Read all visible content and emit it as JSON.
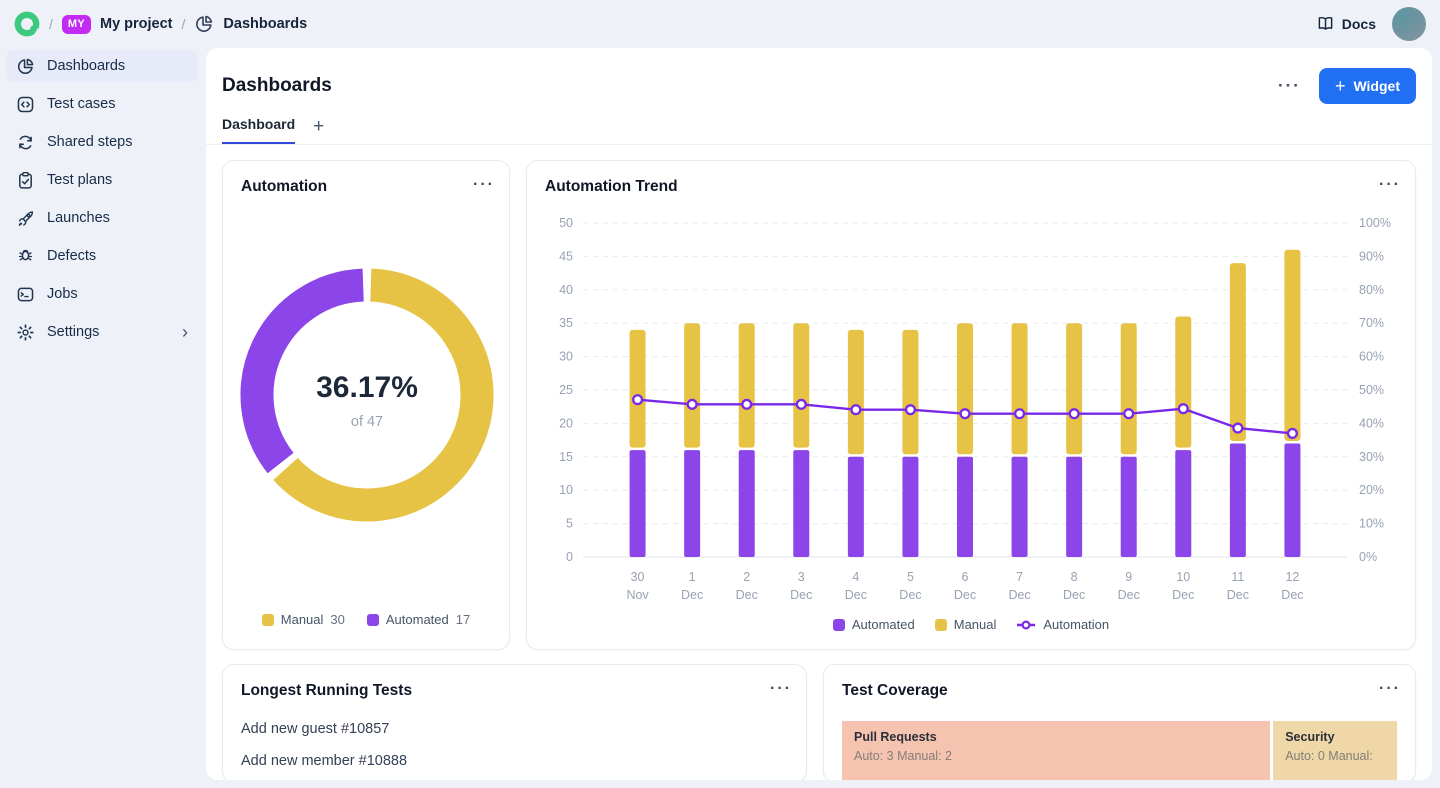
{
  "icons": {
    "plus": "+",
    "more": "···",
    "chevron_right": "›",
    "separator": "/"
  },
  "topbar": {
    "project_badge": "MY",
    "project_name": "My project",
    "section": "Dashboards",
    "docs_label": "Docs"
  },
  "sidebar": {
    "items": [
      {
        "label": "Dashboards",
        "icon": "pie-chart",
        "active": true
      },
      {
        "label": "Test cases",
        "icon": "code-square",
        "active": false
      },
      {
        "label": "Shared steps",
        "icon": "cycle",
        "active": false
      },
      {
        "label": "Test plans",
        "icon": "clipboard-check",
        "active": false
      },
      {
        "label": "Launches",
        "icon": "rocket",
        "active": false
      },
      {
        "label": "Defects",
        "icon": "bug",
        "active": false
      },
      {
        "label": "Jobs",
        "icon": "terminal-window",
        "active": false
      },
      {
        "label": "Settings",
        "icon": "gear",
        "active": false,
        "has_chevron": true
      }
    ]
  },
  "header": {
    "title": "Dashboards",
    "widget_button_label": "Widget"
  },
  "tabs": {
    "active_tab": "Dashboard"
  },
  "widgets": {
    "automation": {
      "title": "Automation",
      "center_value": "36.17%",
      "center_sub": "of 47",
      "legend": [
        {
          "label": "Manual",
          "value": "30",
          "color": "#e6c345"
        },
        {
          "label": "Automated",
          "value": "17",
          "color": "#8b45e8"
        }
      ]
    },
    "trend": {
      "title": "Automation Trend",
      "legend": [
        {
          "label": "Automated",
          "color": "#8b45e8",
          "type": "square"
        },
        {
          "label": "Manual",
          "color": "#e6c345",
          "type": "square"
        },
        {
          "label": "Automation",
          "color": "#7a28e8",
          "type": "line-marker"
        }
      ]
    },
    "longest": {
      "title": "Longest Running Tests",
      "items": [
        "Add new guest #10857",
        "Add new member #10888"
      ]
    },
    "coverage": {
      "title": "Test Coverage",
      "blocks": [
        {
          "name": "Pull Requests",
          "detail": "Auto: 3 Manual: 2",
          "color": "#f6c3b0"
        },
        {
          "name": "Security",
          "detail": "Auto: 0 Manual:",
          "color": "#f0d7a7"
        }
      ]
    }
  },
  "chart_data": [
    {
      "type": "pie",
      "subtype": "donut",
      "title": "Automation",
      "slices": [
        {
          "label": "Automated",
          "value": 17,
          "color": "#8b45e8"
        },
        {
          "label": "Manual",
          "value": 30,
          "color": "#e6c345"
        }
      ],
      "total": 47,
      "center_label": "36.17%",
      "center_sublabel": "of 47",
      "legend_position": "bottom"
    },
    {
      "type": "bar",
      "stacked": true,
      "title": "Automation Trend",
      "categories": [
        [
          "30",
          "Nov"
        ],
        [
          "1",
          "Dec"
        ],
        [
          "2",
          "Dec"
        ],
        [
          "3",
          "Dec"
        ],
        [
          "4",
          "Dec"
        ],
        [
          "5",
          "Dec"
        ],
        [
          "6",
          "Dec"
        ],
        [
          "7",
          "Dec"
        ],
        [
          "8",
          "Dec"
        ],
        [
          "9",
          "Dec"
        ],
        [
          "10",
          "Dec"
        ],
        [
          "11",
          "Dec"
        ],
        [
          "12",
          "Dec"
        ]
      ],
      "series": [
        {
          "name": "Automated",
          "color": "#8b45e8",
          "values": [
            16,
            16,
            16,
            16,
            15,
            15,
            15,
            15,
            15,
            15,
            16,
            17,
            17
          ]
        },
        {
          "name": "Manual",
          "color": "#e6c345",
          "values": [
            18,
            19,
            19,
            19,
            19,
            19,
            20,
            20,
            20,
            20,
            20,
            27,
            29
          ]
        }
      ],
      "line_series": {
        "name": "Automation",
        "color": "#7a28e8",
        "axis": "right",
        "unit": "%",
        "values": [
          47.1,
          45.7,
          45.7,
          45.7,
          44.1,
          44.1,
          42.9,
          42.9,
          42.9,
          42.9,
          44.4,
          38.6,
          37.0
        ]
      },
      "ylim_left": [
        0,
        50
      ],
      "ytick_step_left": 5,
      "ylim_right": [
        0,
        100
      ],
      "ytick_step_right": 10,
      "grid": "horizontal-dashed",
      "legend_position": "bottom"
    }
  ]
}
